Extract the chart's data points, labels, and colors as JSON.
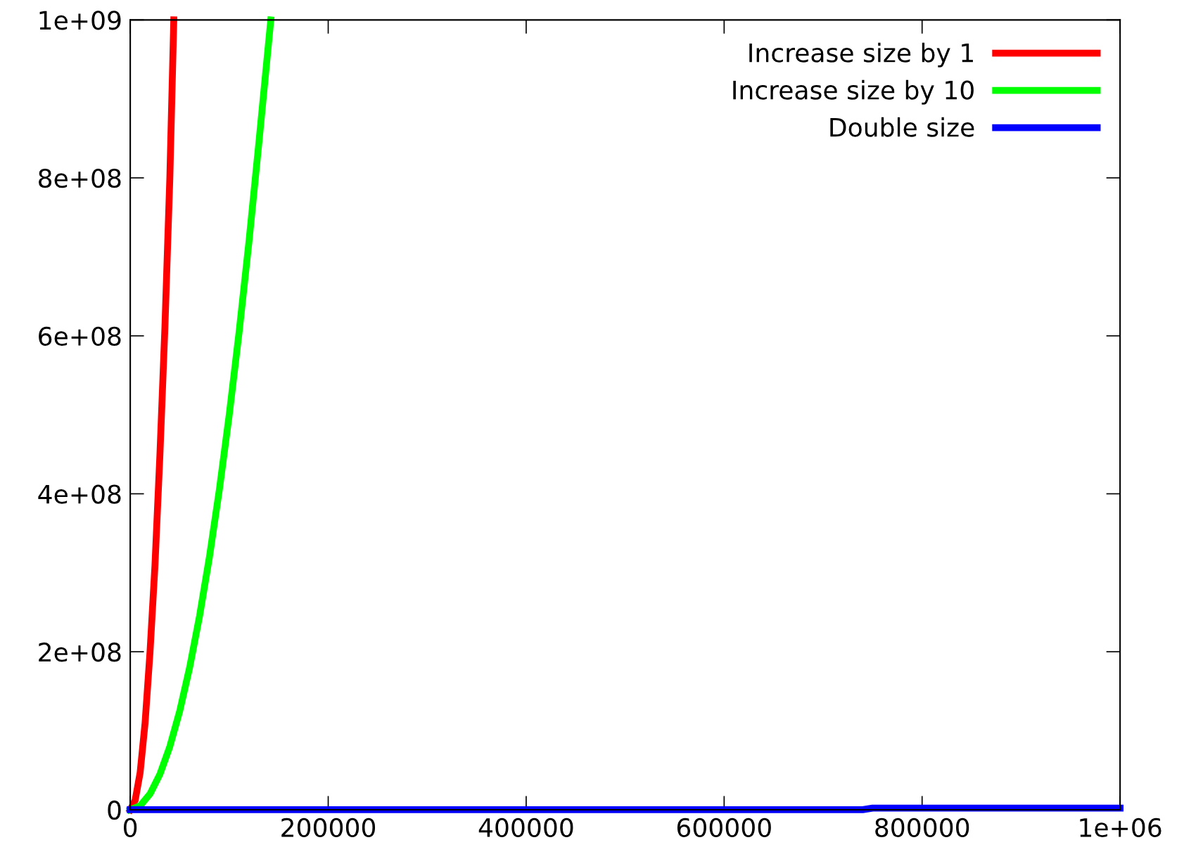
{
  "chart_data": {
    "type": "line",
    "series": [
      {
        "name": "Increase size by 1",
        "color": "#ff0000",
        "x": [
          0,
          5000,
          10000,
          15000,
          20000,
          25000,
          30000,
          35000,
          40000,
          44000
        ],
        "values": [
          0,
          12000000,
          47000000,
          110000000,
          200000000,
          310000000,
          450000000,
          610000000,
          800000000,
          1000000000
        ]
      },
      {
        "name": "Increase size by 10",
        "color": "#00ff00",
        "x": [
          0,
          10000,
          20000,
          30000,
          40000,
          50000,
          60000,
          70000,
          80000,
          90000,
          100000,
          110000,
          120000,
          130000,
          142000
        ],
        "values": [
          0,
          5000000,
          20000000,
          45000000,
          80000000,
          125000000,
          180000000,
          245000000,
          320000000,
          405000000,
          500000000,
          605000000,
          720000000,
          845000000,
          1000000000
        ]
      },
      {
        "name": "Double size",
        "color": "#0000ff",
        "x": [
          0,
          50000,
          100000,
          200000,
          300000,
          400000,
          500000,
          600000,
          700000,
          740000,
          750000,
          800000,
          900000,
          1000000
        ],
        "values": [
          0,
          0,
          0,
          0,
          0,
          0,
          0,
          0,
          0,
          0,
          2000000,
          2000000,
          2000000,
          2000000
        ]
      }
    ],
    "xlim": [
      0,
      1000000
    ],
    "ylim": [
      0,
      1000000000
    ],
    "xticks": [
      0,
      200000,
      400000,
      600000,
      800000,
      {
        "value": 1000000,
        "label": "1e+06"
      }
    ],
    "yticks": [
      0,
      {
        "value": 200000000,
        "label": "2e+08"
      },
      {
        "value": 400000000,
        "label": "4e+08"
      },
      {
        "value": 600000000,
        "label": "6e+08"
      },
      {
        "value": 800000000,
        "label": "8e+08"
      },
      {
        "value": 1000000000,
        "label": "1e+09"
      }
    ],
    "legend": "top right",
    "grid": false,
    "line_style": "solid"
  }
}
